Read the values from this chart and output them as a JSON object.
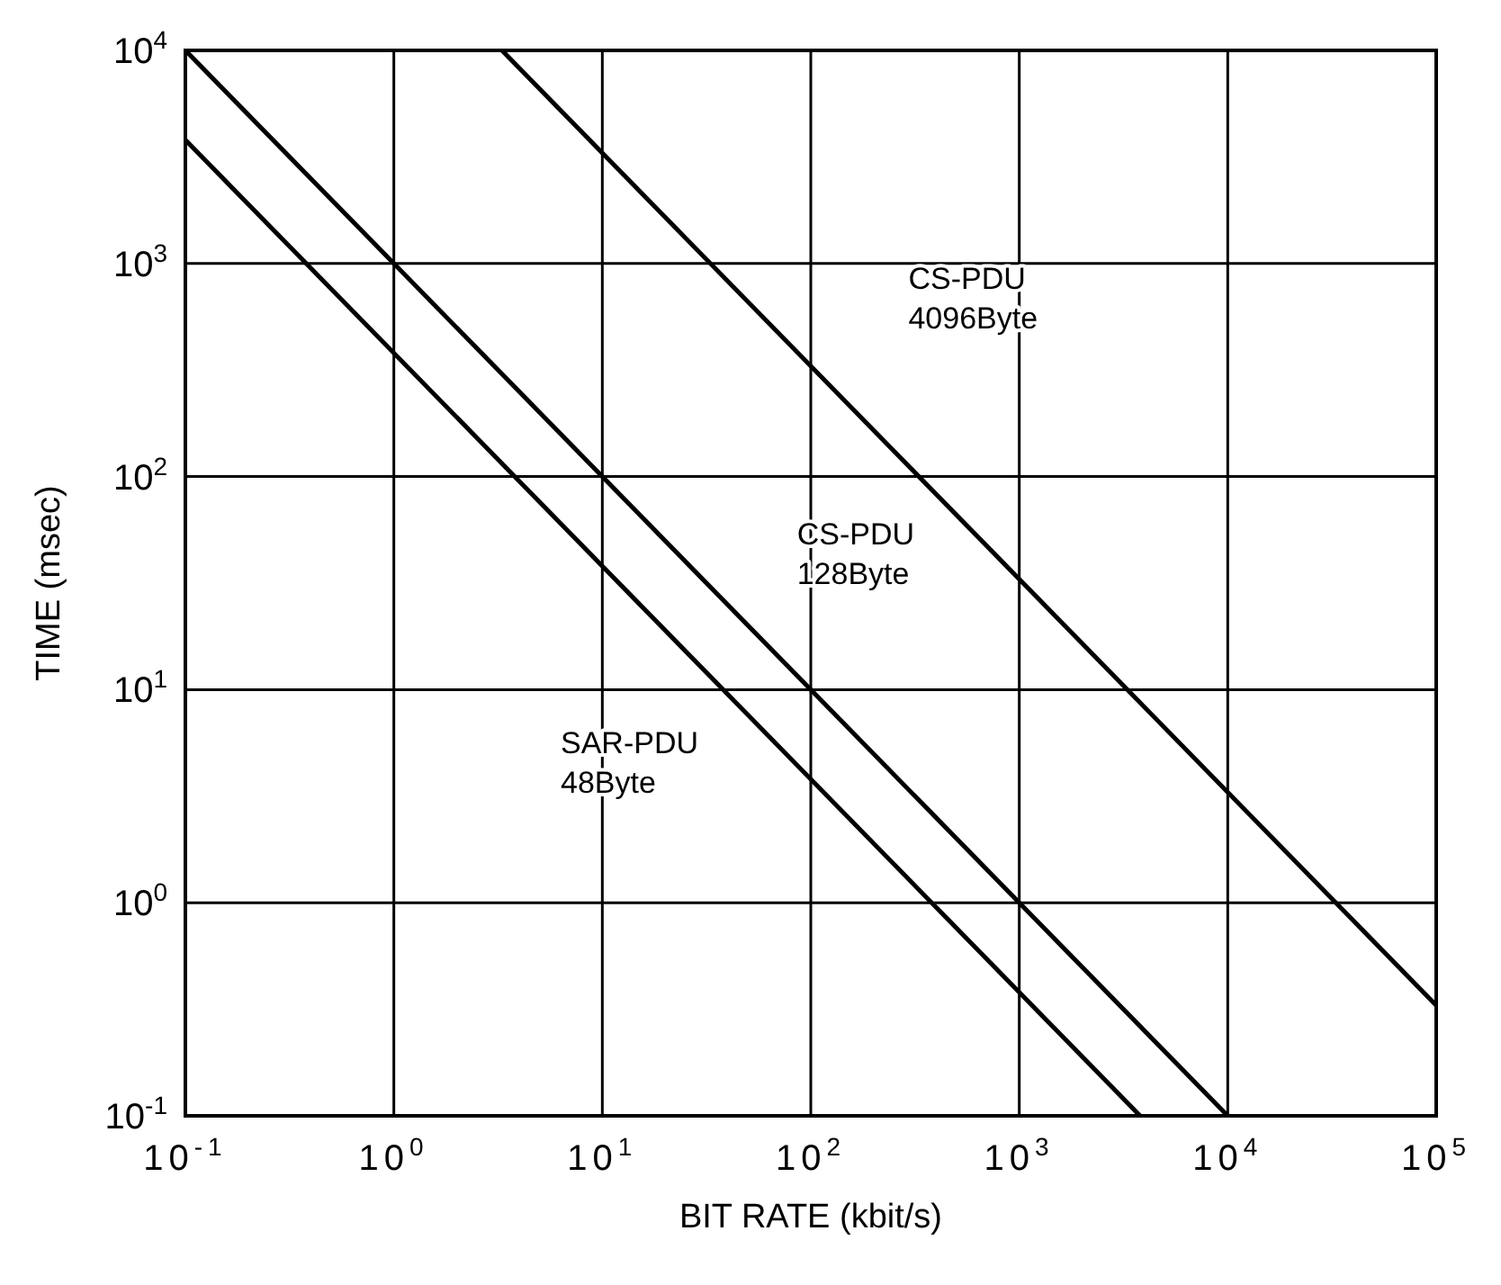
{
  "chart_data": {
    "type": "line",
    "xlabel": "BIT RATE (kbit/s)",
    "ylabel": "TIME (msec)",
    "log": "xy",
    "grid": true,
    "marker": "none",
    "line_style": "solid",
    "xlim": [
      0.1,
      100000
    ],
    "ylim": [
      0.1,
      10000
    ],
    "xticks": [
      {
        "value": 0.1,
        "label": "10$^{-1}$"
      },
      {
        "value": 1,
        "label": "10$^{0}$"
      },
      {
        "value": 10,
        "label": "10$^{1}$"
      },
      {
        "value": 100,
        "label": "10$^{2}$"
      },
      {
        "value": 1000,
        "label": "10$^{3}$"
      },
      {
        "value": 10000,
        "label": "10$^{4}$"
      },
      {
        "value": 100000,
        "label": "10$^{5}$"
      }
    ],
    "yticks": [
      {
        "value": 0.1,
        "label": "10$^{-1}$"
      },
      {
        "value": 1,
        "label": "10$^{0}$"
      },
      {
        "value": 10,
        "label": "10$^{1}$"
      },
      {
        "value": 100,
        "label": "10$^{2}$"
      },
      {
        "value": 1000,
        "label": "10$^{3}$"
      },
      {
        "value": 10000,
        "label": "10$^{4}$"
      }
    ],
    "series": [
      {
        "color": "#000000",
        "x": [
          0.1,
          3800
        ],
        "values": [
          3800,
          0.1
        ]
      },
      {
        "color": "#000000",
        "x": [
          0.1,
          10000
        ],
        "values": [
          10000,
          0.1
        ]
      },
      {
        "color": "#000000",
        "x": [
          3.3,
          100000
        ],
        "values": [
          10000,
          0.33
        ]
      }
    ],
    "annotations": [
      "CS-PDU\n4096Byte",
      "CS-PDU\n128Byte",
      "SAR-PDU\n48Byte"
    ]
  }
}
